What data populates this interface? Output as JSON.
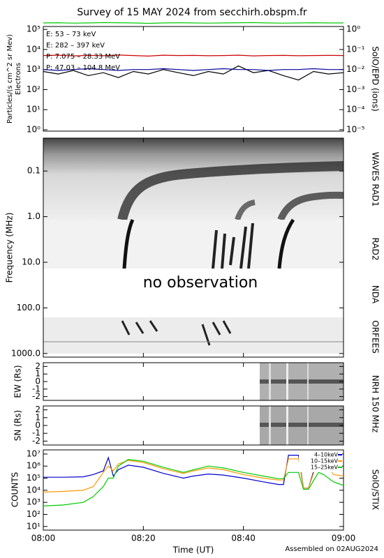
{
  "title": "Survey of 15 MAY 2024 from secchirh.obspm.fr",
  "xlabel": "Time (UT)",
  "footer": "Assembled on 02AUG2024",
  "xlim": [
    "08:00",
    "09:00"
  ],
  "xticks": [
    "08:00",
    "08:20",
    "08:40",
    "09:00"
  ],
  "chart_data": [
    {
      "type": "line",
      "log_y": true,
      "ylabel": "Particles/(s cm^2 sr Mev)",
      "ysublabel": "Electrons",
      "y2label": "SolO/EPD (ions)",
      "ylim": [
        0.85,
        140000
      ],
      "yticks": [
        {
          "value": 1,
          "label": "10⁰"
        },
        {
          "value": 10,
          "label": "10¹"
        },
        {
          "value": 100,
          "label": "10²"
        },
        {
          "value": 1000,
          "label": "10³"
        },
        {
          "value": 10000,
          "label": "10⁴"
        },
        {
          "value": 100000,
          "label": "10⁵"
        }
      ],
      "y2lim": [
        8.5e-06,
        1.4
      ],
      "y2ticks": [
        {
          "value": 1e-05,
          "label": "10⁻⁵"
        },
        {
          "value": 0.0001,
          "label": "10⁻⁴"
        },
        {
          "value": 0.001,
          "label": "10⁻³"
        },
        {
          "value": 0.01,
          "label": "10⁻²"
        },
        {
          "value": 0.1,
          "label": "10⁻¹"
        },
        {
          "value": 1,
          "label": "10⁰"
        }
      ],
      "legend": "upper left",
      "x": [
        "08:00",
        "08:03",
        "08:06",
        "08:09",
        "08:12",
        "08:15",
        "08:18",
        "08:21",
        "08:24",
        "08:27",
        "08:30",
        "08:33",
        "08:36",
        "08:39",
        "08:42",
        "08:45",
        "08:48",
        "08:51",
        "08:54",
        "08:57",
        "09:00"
      ],
      "series": [
        {
          "name": "E: 53 – 73 keV",
          "color": "#00cc00",
          "values": [
            210000,
            215000,
            205000,
            210000,
            220000,
            215000,
            210000,
            200000,
            210000,
            215000,
            210000,
            205000,
            210000,
            215000,
            220000,
            210000,
            205000,
            210000,
            215000,
            210000,
            210000
          ]
        },
        {
          "name": "E: 282 – 397 keV",
          "color": "#cc0000",
          "values": [
            5000,
            5200,
            4800,
            5100,
            4900,
            5300,
            5000,
            4700,
            5200,
            5000,
            5100,
            4900,
            5000,
            5200,
            4800,
            5000,
            5100,
            4900,
            5000,
            5100,
            5000
          ]
        },
        {
          "name": "P: 7.075 – 28.33 MeV",
          "color": "#000000",
          "axis": "y2",
          "values": [
            0.008,
            0.006,
            0.009,
            0.005,
            0.007,
            0.004,
            0.008,
            0.006,
            0.01,
            0.007,
            0.005,
            0.008,
            0.006,
            0.015,
            0.007,
            0.009,
            0.005,
            0.003,
            0.008,
            0.006,
            0.007
          ]
        },
        {
          "name": "P: 47.03 – 104.8 MeV",
          "color": "#000099",
          "axis": "y2",
          "values": [
            0.01,
            0.009,
            0.01,
            0.011,
            0.01,
            0.009,
            0.01,
            0.01,
            0.011,
            0.01,
            0.009,
            0.01,
            0.011,
            0.01,
            0.01,
            0.009,
            0.01,
            0.01,
            0.011,
            0.01,
            0.01
          ]
        }
      ]
    },
    {
      "type": "spectrogram",
      "log_y": true,
      "y_inverted": true,
      "ylabel": "Frequency (MHz)",
      "ylim": [
        0.019,
        1200
      ],
      "yticks": [
        0.1,
        {
          "value": 1,
          "label": "1.0"
        },
        {
          "value": 10,
          "label": "10.0"
        },
        {
          "value": 100,
          "label": "100.0"
        },
        {
          "value": 1000,
          "label": "1000.0"
        }
      ],
      "instruments": [
        "WAVES RAD1",
        "RAD2",
        "NDA",
        "ORFEES"
      ],
      "annotation": "no observation"
    },
    {
      "type": "image",
      "ylabel": "EW (Rs)",
      "y2label": "NRH 150 MHz",
      "ylim": [
        -2.5,
        2.5
      ],
      "yticks": [
        2,
        1,
        0,
        -1,
        -2
      ]
    },
    {
      "type": "image",
      "ylabel": "SN (Rs)",
      "ylim": [
        -2.5,
        2.5
      ],
      "yticks": [
        2,
        1,
        0,
        -1,
        -2
      ]
    },
    {
      "type": "line",
      "log_y": true,
      "ylabel": "COUNTS",
      "y2label": "SolO/STIX",
      "ylim": [
        5,
        22000000
      ],
      "yticks": [
        {
          "value": 10,
          "label": "10¹"
        },
        {
          "value": 100,
          "label": "10²"
        },
        {
          "value": 1000,
          "label": "10³"
        },
        {
          "value": 10000,
          "label": "10⁴"
        },
        {
          "value": 100000,
          "label": "10⁵"
        },
        {
          "value": 1000000,
          "label": "10⁶"
        },
        {
          "value": 10000000,
          "label": "10⁷"
        }
      ],
      "legend": "upper right",
      "x": [
        "08:00",
        "08:04",
        "08:08",
        "08:10",
        "08:12",
        "08:13",
        "08:14",
        "08:15",
        "08:17",
        "08:20",
        "08:24",
        "08:28",
        "08:30",
        "08:33",
        "08:36",
        "08:40",
        "08:44",
        "08:47",
        "08:48",
        "08:49",
        "08:51",
        "08:52",
        "08:53",
        "08:55",
        "08:56",
        "08:58",
        "09:00"
      ],
      "series": [
        {
          "name": "4–10keV",
          "color": "#0000cc",
          "values": [
            120000,
            120000,
            130000,
            200000,
            400000,
            5000000,
            150000,
            500000,
            1200000,
            800000,
            250000,
            100000,
            150000,
            220000,
            180000,
            100000,
            50000,
            30000,
            30000,
            8000000,
            8000000,
            15000,
            15000,
            8000000,
            8000000,
            null,
            null
          ]
        },
        {
          "name": "10–15keV",
          "color": "#ff9900",
          "values": [
            7000,
            8000,
            10000,
            20000,
            300000,
            1000000,
            400000,
            1500000,
            3000000,
            2000000,
            600000,
            250000,
            400000,
            700000,
            500000,
            200000,
            100000,
            70000,
            70000,
            4000000,
            4000000,
            15000,
            15000,
            4000000,
            3000000,
            200000,
            150000
          ]
        },
        {
          "name": "15–25keV",
          "color": "#00cc00",
          "values": [
            500,
            600,
            1000,
            3000,
            20000,
            100000,
            100000,
            1000000,
            3500000,
            2500000,
            800000,
            300000,
            500000,
            1000000,
            700000,
            300000,
            150000,
            90000,
            90000,
            300000,
            300000,
            12000,
            12000,
            300000,
            200000,
            50000,
            25000
          ]
        }
      ]
    }
  ]
}
